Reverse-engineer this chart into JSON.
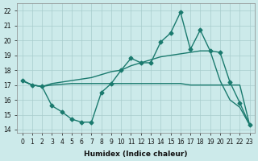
{
  "xlabel": "Humidex (Indice chaleur)",
  "x": [
    0,
    1,
    2,
    3,
    4,
    5,
    6,
    7,
    8,
    9,
    10,
    11,
    12,
    13,
    14,
    15,
    16,
    17,
    18,
    19,
    20,
    21,
    22,
    23
  ],
  "line_jagged": [
    17.3,
    17.0,
    16.9,
    15.6,
    15.2,
    14.7,
    14.5,
    14.5,
    16.5,
    17.1,
    18.0,
    18.8,
    18.5,
    18.5,
    19.9,
    20.5,
    21.9,
    19.4,
    20.7,
    19.3,
    19.2,
    17.2,
    15.8,
    14.3
  ],
  "line_rising": [
    17.3,
    17.0,
    16.9,
    17.1,
    17.2,
    17.3,
    17.4,
    17.5,
    17.7,
    17.9,
    18.0,
    18.3,
    18.5,
    18.7,
    18.9,
    19.0,
    19.1,
    19.2,
    19.3,
    19.3,
    17.3,
    16.0,
    15.5,
    14.3
  ],
  "line_flat": [
    17.3,
    17.0,
    16.9,
    17.0,
    17.05,
    17.1,
    17.1,
    17.1,
    17.1,
    17.1,
    17.1,
    17.1,
    17.1,
    17.1,
    17.1,
    17.1,
    17.1,
    17.0,
    17.0,
    17.0,
    17.0,
    17.0,
    17.0,
    14.3
  ],
  "line_color": "#1a7a6e",
  "bg_color": "#cceaea",
  "grid_color": "#a8cccc",
  "ylim": [
    13.8,
    22.5
  ],
  "yticks": [
    14,
    15,
    16,
    17,
    18,
    19,
    20,
    21,
    22
  ],
  "markersize": 2.5,
  "linewidth": 1.0
}
